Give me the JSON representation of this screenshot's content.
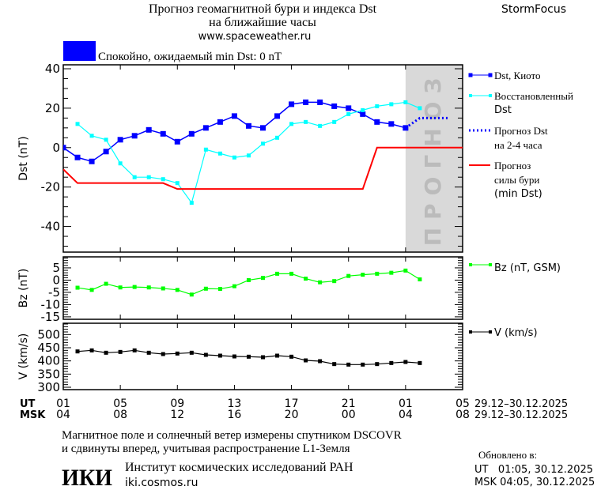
{
  "header": {
    "title_line1": "Прогноз геомагнитной бури и индекса Dst",
    "title_line2": "на ближайшие часы",
    "url": "www.spaceweather.ru",
    "brand": "StormFocus"
  },
  "status": {
    "text": "Спокойно, ожидаемый min Dst: 0 nT",
    "color": "#0000ff"
  },
  "forecast_label": "ПРОГНОЗ",
  "x_axis": {
    "ut_label": "UT",
    "msk_label": "MSK",
    "ut_ticks": [
      "01",
      "05",
      "09",
      "13",
      "17",
      "21",
      "01",
      "05"
    ],
    "msk_ticks": [
      "04",
      "08",
      "12",
      "16",
      "20",
      "00",
      "04",
      "08"
    ],
    "ut_dates": "29.12–30.12.2025",
    "msk_dates": "29.12–30.12.2025",
    "tick_hours": [
      0,
      4,
      8,
      12,
      16,
      20,
      24,
      28
    ],
    "range_hours_from_ut01": [
      0,
      28
    ],
    "forecast_start_hour": 24
  },
  "chart_data": [
    {
      "type": "line",
      "ylabel": "Dst (nT)",
      "ylim": [
        -53,
        42
      ],
      "yticks": [
        40,
        20,
        0,
        -20,
        -40
      ],
      "x_unit": "hours since 01 UT 29.12.2025",
      "series": [
        {
          "name": "Dst, Киото",
          "color": "#0000ff",
          "style": "solid-square",
          "x": [
            0,
            1,
            2,
            3,
            4,
            5,
            6,
            7,
            8,
            9,
            10,
            11,
            12,
            13,
            14,
            15,
            16,
            17,
            18,
            19,
            20,
            21,
            22,
            23,
            24
          ],
          "values": [
            0,
            -5,
            -7,
            -2,
            4,
            6,
            9,
            7,
            3,
            7,
            10,
            13,
            16,
            11,
            10,
            16,
            22,
            23,
            23,
            21,
            20,
            17,
            13,
            12,
            10
          ]
        },
        {
          "name": "Восстановленный Dst",
          "color": "#00ffff",
          "style": "solid-square",
          "x": [
            1,
            2,
            3,
            4,
            5,
            6,
            7,
            8,
            9,
            10,
            11,
            12,
            13,
            14,
            15,
            16,
            17,
            18,
            19,
            20,
            21,
            22,
            23,
            24,
            25
          ],
          "values": [
            12,
            6,
            4,
            -8,
            -15,
            -15,
            -16,
            -18,
            -28,
            -1,
            -3,
            -5,
            -4,
            2,
            5,
            12,
            13,
            11,
            13,
            17,
            19,
            21,
            22,
            23,
            20
          ]
        },
        {
          "name": "Прогноз Dst на 2-4 часа",
          "color": "#0000ff",
          "style": "dotted",
          "x": [
            24,
            25,
            27
          ],
          "values": [
            10,
            15,
            15
          ]
        },
        {
          "name": "Прогноз силы бури (min Dst)",
          "color": "#ff0000",
          "style": "solid",
          "x": [
            0,
            1,
            7,
            8,
            21,
            22,
            28
          ],
          "values": [
            -11,
            -18,
            -18,
            -21,
            -21,
            0,
            0
          ]
        }
      ]
    },
    {
      "type": "line",
      "ylabel": "Bz (nT)",
      "ylim": [
        -16,
        9.5
      ],
      "yticks": [
        5,
        0,
        -5,
        -10,
        -15
      ],
      "series": [
        {
          "name": "Bz (nT, GSM)",
          "color": "#00ff00",
          "x": [
            1,
            2,
            3,
            4,
            5,
            6,
            7,
            8,
            9,
            10,
            11,
            12,
            13,
            14,
            15,
            16,
            17,
            18,
            19,
            20,
            21,
            22,
            23,
            24,
            25
          ],
          "values": [
            -3.1,
            -4,
            -1.5,
            -3,
            -2.8,
            -3,
            -3.4,
            -4,
            -5.9,
            -3.5,
            -3.6,
            -2.5,
            0,
            0.9,
            2.6,
            2.6,
            0.6,
            -0.9,
            -0.4,
            1.7,
            2.2,
            2.6,
            3,
            3.9,
            0.3
          ]
        }
      ]
    },
    {
      "type": "line",
      "ylabel": "V (km/s)",
      "ylim": [
        291,
        543
      ],
      "yticks": [
        500,
        450,
        400,
        350,
        300
      ],
      "series": [
        {
          "name": "V (km/s)",
          "color": "#000000",
          "x": [
            1,
            2,
            3,
            4,
            5,
            6,
            7,
            8,
            9,
            10,
            11,
            12,
            13,
            14,
            15,
            16,
            17,
            18,
            19,
            20,
            21,
            22,
            23,
            24,
            25
          ],
          "values": [
            436,
            440,
            431,
            434,
            440,
            431,
            426,
            428,
            431,
            423,
            420,
            417,
            416,
            414,
            420,
            416,
            402,
            399,
            388,
            386,
            386,
            388,
            392,
            396,
            392
          ]
        }
      ]
    }
  ],
  "legend": {
    "dst_kyoto": "Dst, Киото",
    "restored_1": "Восстановленный",
    "restored_2": "Dst",
    "forecast_1": "Прогноз Dst",
    "forecast_2": "на 2-4 часа",
    "storm_1": "Прогноз",
    "storm_2": "силы бури",
    "storm_3": "(min Dst)",
    "bz": "Bz (nT, GSM)",
    "v": "V (km/s)"
  },
  "footer": {
    "note_line1": "Магнитное поле и солнечный ветер измерены спутником DSCOVR",
    "note_line2": "и сдвинуты вперед, учитывая распространение L1-Земля",
    "logo": "ИКИ",
    "institute": "Институт космических исследований РАН",
    "site": "iki.cosmos.ru",
    "updated_label": "Обновлено в:",
    "updated_ut": "UT   01:05, 30.12.2025",
    "updated_msk": "MSK 04:05, 30.12.2025"
  }
}
